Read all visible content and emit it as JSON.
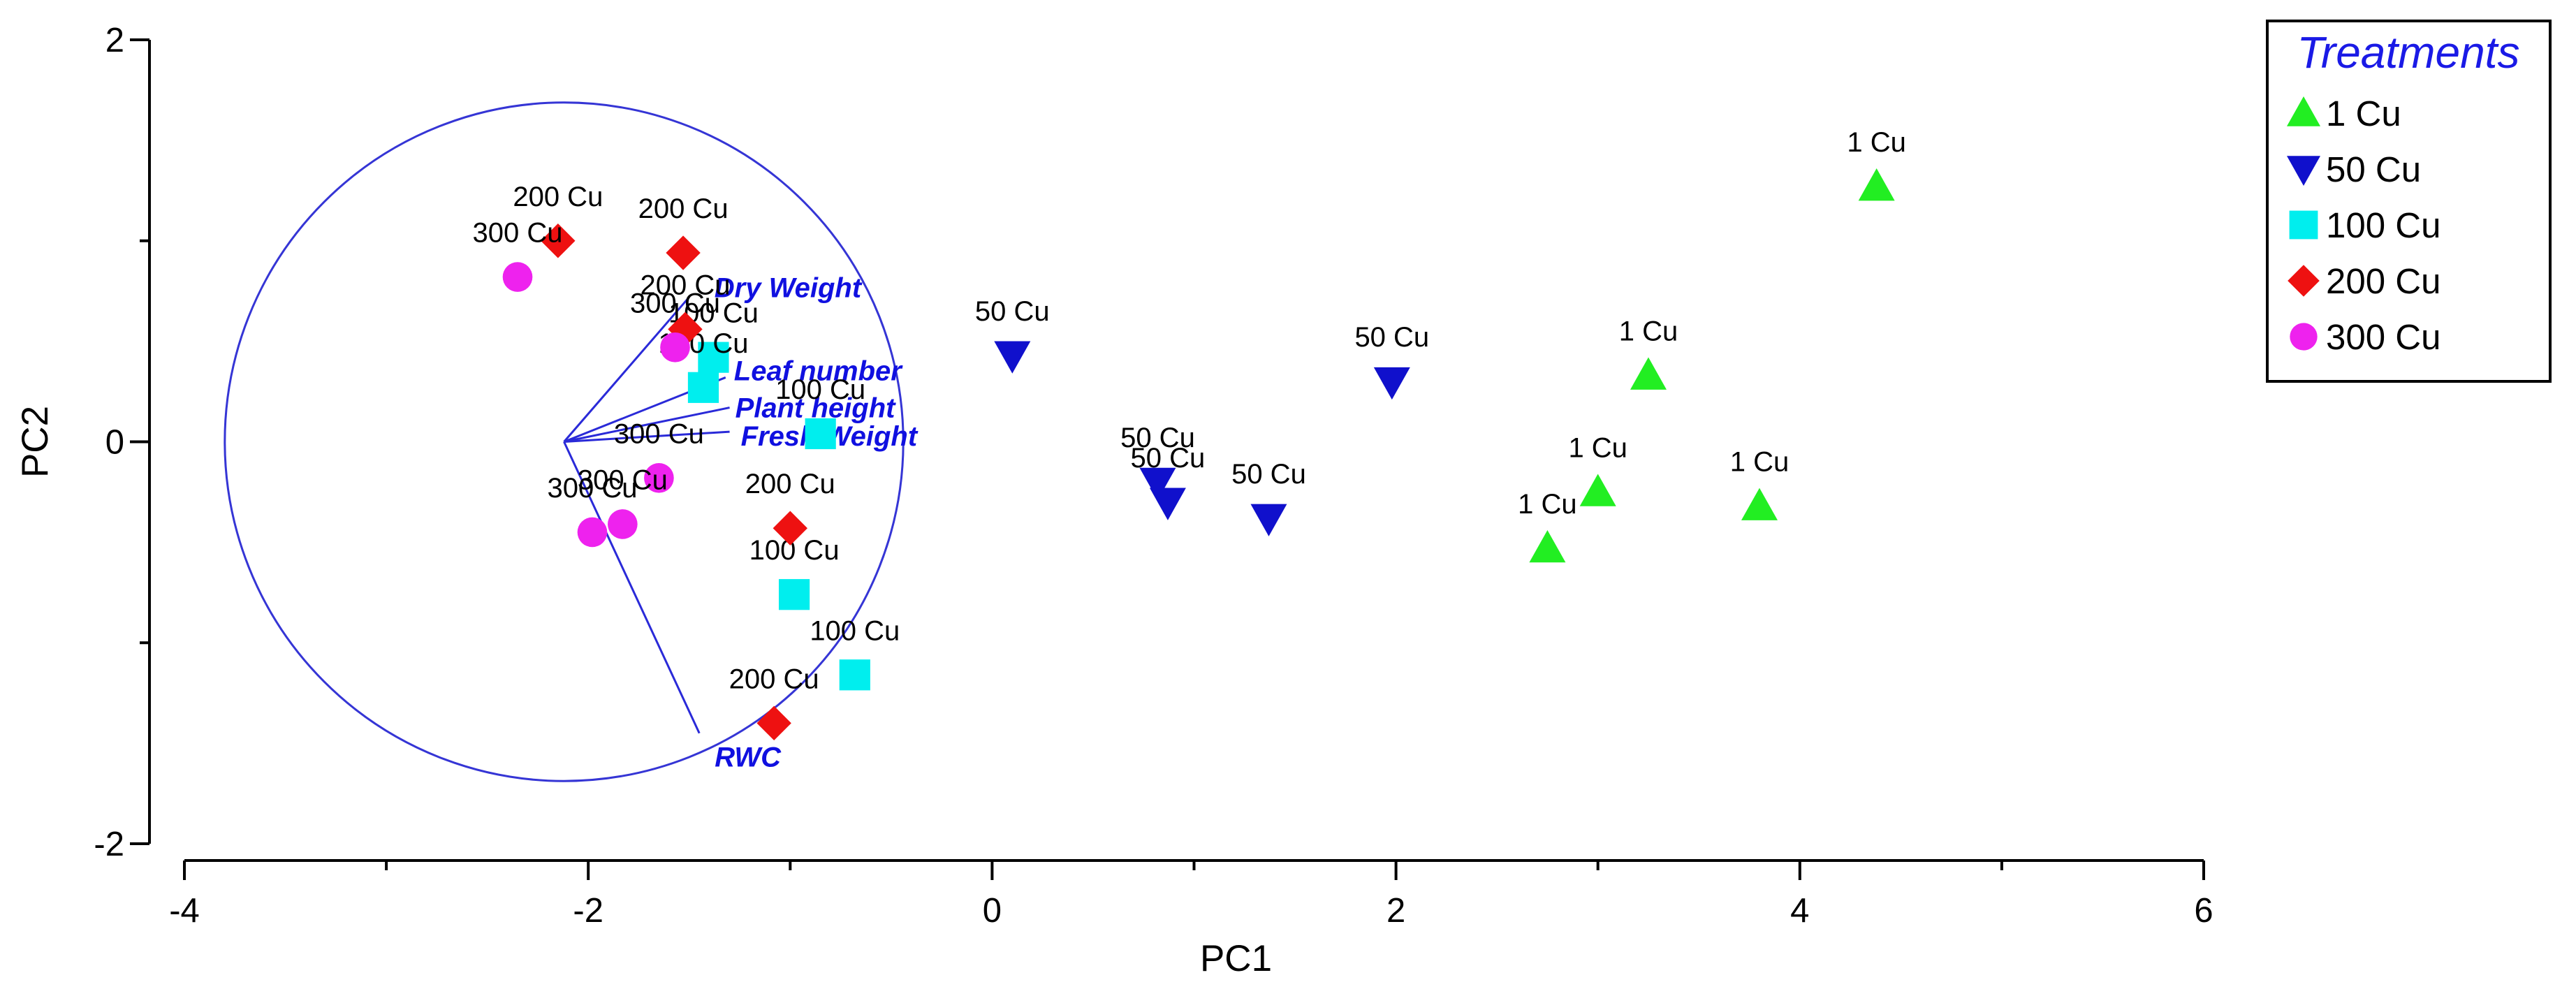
{
  "chart_data": {
    "type": "scatter",
    "title": "",
    "xlabel": "PC1",
    "ylabel": "PC2",
    "xlim": [
      -4,
      6
    ],
    "ylim": [
      -2,
      2
    ],
    "xticks": [
      "-4",
      "-2",
      "0",
      "2",
      "4",
      "6"
    ],
    "yticks": [
      "2",
      "0",
      "-2"
    ],
    "legend": {
      "title": "Treatments",
      "placement": "top-right",
      "entries": [
        "1 Cu",
        "50 Cu",
        "100 Cu",
        "200 Cu",
        "300 Cu"
      ]
    },
    "series": [
      {
        "name": "1 Cu",
        "marker": "triangle-up",
        "color": "#22ee22",
        "points": [
          [
            4.38,
            1.27
          ],
          [
            3.25,
            0.33
          ],
          [
            3.0,
            -0.25
          ],
          [
            2.75,
            -0.53
          ],
          [
            3.8,
            -0.32
          ]
        ],
        "labels": [
          "1 Cu",
          "1 Cu",
          "1 Cu",
          "1 Cu",
          "1 Cu"
        ]
      },
      {
        "name": "50 Cu",
        "marker": "triangle-down",
        "color": "#1010cc",
        "points": [
          [
            0.1,
            0.43
          ],
          [
            1.98,
            0.3
          ],
          [
            0.82,
            -0.2
          ],
          [
            0.87,
            -0.3
          ],
          [
            1.37,
            -0.38
          ]
        ],
        "labels": [
          "50 Cu",
          "50 Cu",
          "50 Cu",
          "50 Cu",
          "50 Cu"
        ]
      },
      {
        "name": "100 Cu",
        "marker": "square",
        "color": "#00eeee",
        "points": [
          [
            -1.38,
            0.42
          ],
          [
            -1.43,
            0.27
          ],
          [
            -0.85,
            0.04
          ],
          [
            -0.98,
            -0.76
          ],
          [
            -0.68,
            -1.16
          ]
        ],
        "labels": [
          "100 Cu",
          "100 Cu",
          "100 Cu",
          "100 Cu",
          "100 Cu"
        ]
      },
      {
        "name": "200 Cu",
        "marker": "diamond",
        "color": "#ee1111",
        "points": [
          [
            -2.15,
            1.0
          ],
          [
            -1.53,
            0.94
          ],
          [
            -1.52,
            0.56
          ],
          [
            -1.0,
            -0.43
          ],
          [
            -1.08,
            -1.4
          ]
        ],
        "labels": [
          "200 Cu",
          "200 Cu",
          "200 Cu",
          "200 Cu",
          "200 Cu"
        ]
      },
      {
        "name": "300 Cu",
        "marker": "circle",
        "color": "#ee22ee",
        "points": [
          [
            -2.35,
            0.82
          ],
          [
            -1.57,
            0.47
          ],
          [
            -1.65,
            -0.18
          ],
          [
            -1.83,
            -0.41
          ],
          [
            -1.98,
            -0.45
          ]
        ],
        "labels": [
          "300 Cu",
          "300 Cu",
          "300 Cu",
          "300 Cu",
          "300 Cu"
        ]
      }
    ],
    "vectors": {
      "origin": [
        -2.12,
        0.0
      ],
      "circle_radius": 1.68,
      "items": [
        {
          "name": "Dry Weight",
          "end": [
            -1.5,
            0.72
          ]
        },
        {
          "name": "Leaf number",
          "end": [
            -1.32,
            0.32
          ]
        },
        {
          "name": "Plant height",
          "end": [
            -1.3,
            0.17
          ]
        },
        {
          "name": "Fresh Weight",
          "end": [
            -1.3,
            0.05
          ]
        },
        {
          "name": "RWC",
          "end": [
            -1.45,
            -1.45
          ]
        }
      ]
    }
  }
}
